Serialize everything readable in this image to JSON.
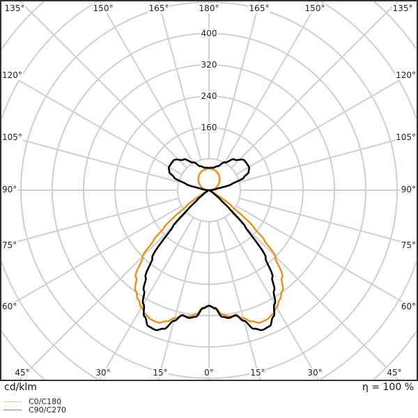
{
  "chart_data": {
    "type": "polar",
    "unit_label": "cd/klm",
    "efficiency_label": "η = 100 %",
    "radial_ticks": [
      "160",
      "240",
      "320",
      "400"
    ],
    "radial_step": 80,
    "grid": true,
    "angle_labels": {
      "top": [
        "135°",
        "150°",
        "165°",
        "180°",
        "165°",
        "150°",
        "135°"
      ],
      "left": [
        "120°",
        "105°",
        "90°",
        "75°",
        "60°"
      ],
      "right": [
        "120°",
        "105°",
        "90°",
        "75°",
        "60°"
      ],
      "bottom": [
        "45°",
        "30°",
        "15°",
        "0°",
        "15°",
        "30°",
        "45°"
      ]
    },
    "angles_deg": [
      0,
      3,
      6,
      9,
      12,
      15,
      18,
      21,
      24,
      27,
      30,
      33,
      36,
      40,
      45,
      48,
      50,
      55,
      60,
      70,
      80,
      90,
      100,
      105,
      110,
      115,
      120,
      130,
      140,
      150,
      160,
      170,
      180
    ],
    "series": [
      {
        "name": "C0/C180",
        "color": "#e8901e",
        "values": [
          295,
          300,
          318,
          326,
          328,
          338,
          352,
          362,
          362,
          356,
          345,
          332,
          318,
          290,
          240,
          190,
          150,
          70,
          15,
          0,
          0,
          0,
          9,
          14,
          19,
          23,
          27,
          35,
          42,
          48,
          52,
          54,
          55
        ]
      },
      {
        "name": "C90/C270",
        "color": "#000000",
        "values": [
          295,
          302,
          325,
          330,
          326,
          345,
          372,
          382,
          380,
          362,
          335,
          305,
          275,
          225,
          130,
          70,
          40,
          15,
          5,
          0,
          0,
          0,
          20,
          60,
          95,
          112,
          118,
          118,
          102,
          82,
          65,
          58,
          57
        ]
      }
    ],
    "legend": [
      "C0/C180",
      "C90/C270"
    ],
    "legend_position": "bottom-left"
  }
}
